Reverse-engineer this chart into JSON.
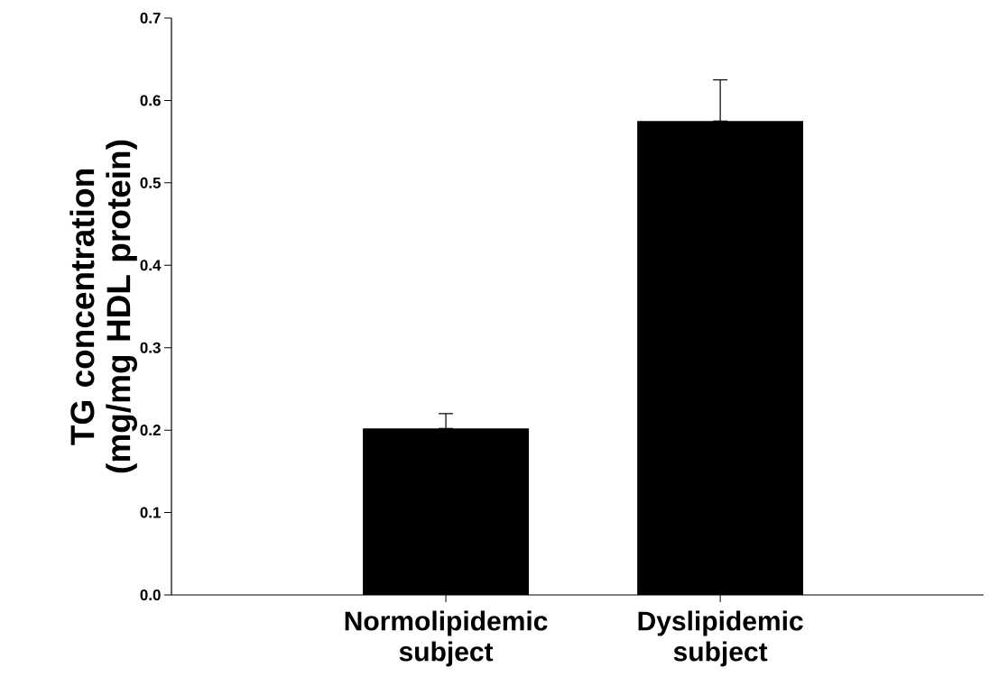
{
  "chart_data": {
    "type": "bar",
    "ylabel": "TG concentration (mg/mg HDL protein)",
    "categories": [
      "Normolipidemic subject",
      "Dyslipidemic subject"
    ],
    "values": [
      0.202,
      0.575
    ],
    "errors": [
      [
        0.202,
        0.22
      ],
      [
        0.575,
        0.625
      ]
    ],
    "color": "#000000",
    "ylim": [
      0,
      0.7
    ],
    "yticks": [
      {
        "value": 0,
        "label": "0.0"
      },
      0.1,
      0.2,
      0.3,
      0.4,
      0.5,
      0.6,
      0.7
    ],
    "grid": false
  }
}
